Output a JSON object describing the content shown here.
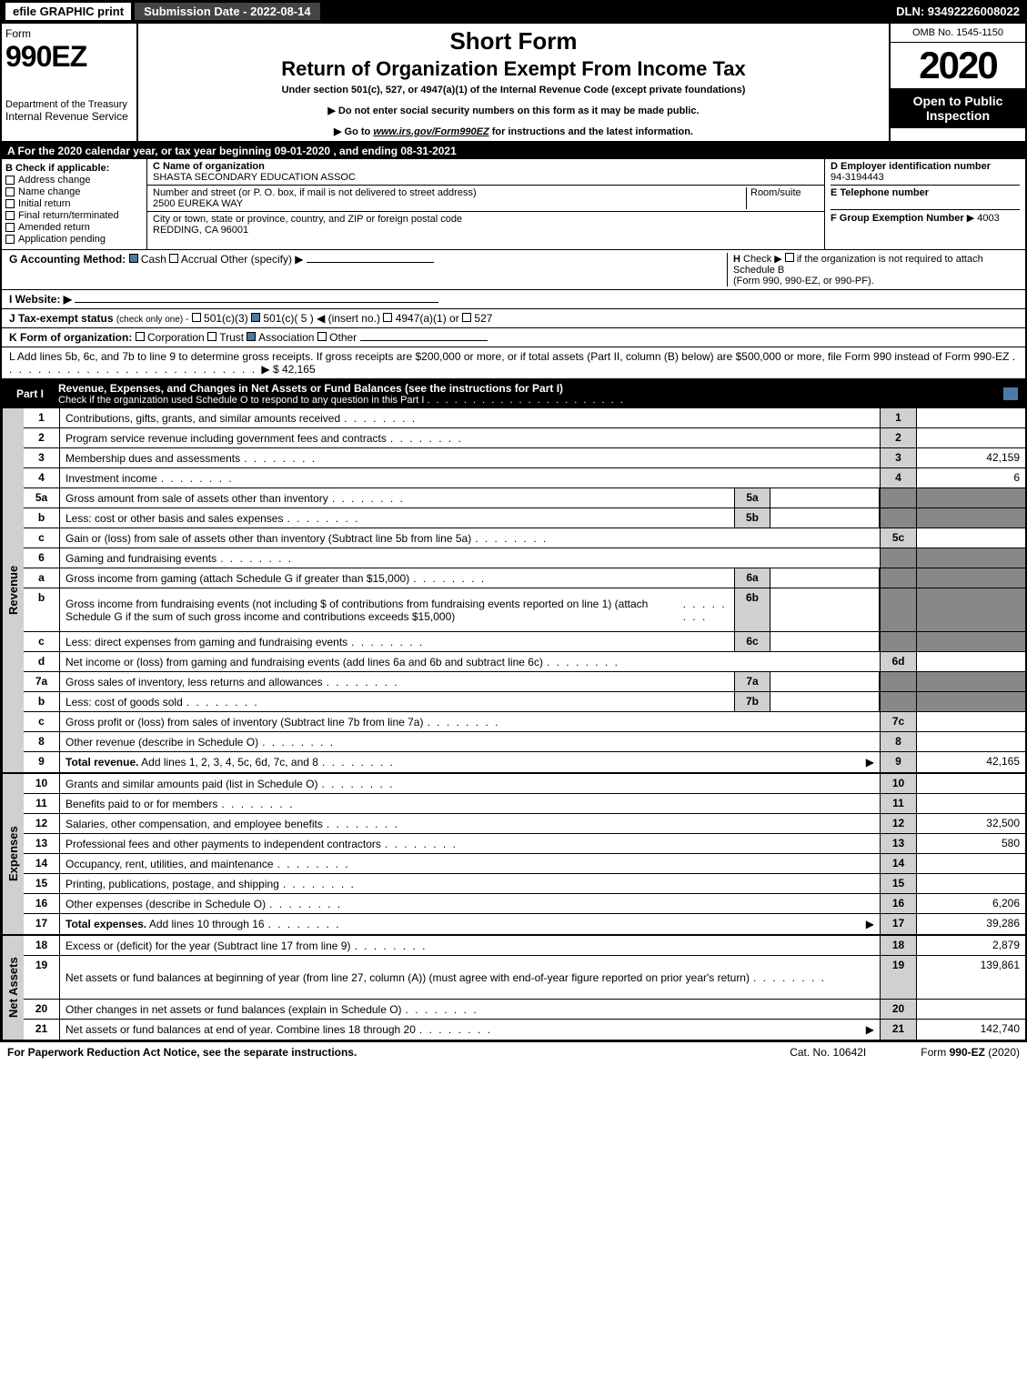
{
  "topbar": {
    "efile": "efile GRAPHIC print",
    "submission": "Submission Date - 2022-08-14",
    "dln": "DLN: 93492226008022"
  },
  "header": {
    "form_label": "Form",
    "form_number": "990EZ",
    "dept1": "Department of the Treasury",
    "dept2": "Internal Revenue Service",
    "short_form": "Short Form",
    "return_title": "Return of Organization Exempt From Income Tax",
    "under_section": "Under section 501(c), 527, or 4947(a)(1) of the Internal Revenue Code (except private foundations)",
    "instr1": "▶ Do not enter social security numbers on this form as it may be made public.",
    "instr2_pre": "▶ Go to ",
    "instr2_link": "www.irs.gov/Form990EZ",
    "instr2_post": " for instructions and the latest information.",
    "omb": "OMB No. 1545-1150",
    "year": "2020",
    "open": "Open to Public Inspection"
  },
  "line_a": "A For the 2020 calendar year, or tax year beginning 09-01-2020 , and ending 08-31-2021",
  "section_b": {
    "title": "B Check if applicable:",
    "items": [
      "Address change",
      "Name change",
      "Initial return",
      "Final return/terminated",
      "Amended return",
      "Application pending"
    ]
  },
  "section_c": {
    "name_label": "C Name of organization",
    "name": "SHASTA SECONDARY EDUCATION ASSOC",
    "street_label": "Number and street (or P. O. box, if mail is not delivered to street address)",
    "room_label": "Room/suite",
    "street": "2500 EUREKA WAY",
    "city_label": "City or town, state or province, country, and ZIP or foreign postal code",
    "city": "REDDING, CA  96001"
  },
  "section_d": {
    "ein_label": "D Employer identification number",
    "ein": "94-3194443",
    "phone_label": "E Telephone number",
    "group_label": "F Group Exemption Number",
    "group_arrow": "▶ 4003"
  },
  "line_g": {
    "label": "G Accounting Method:",
    "cash": "Cash",
    "accrual": "Accrual",
    "other": "Other (specify) ▶"
  },
  "line_h": {
    "label": "H",
    "text1": "Check ▶",
    "text2": "if the organization is not required to attach Schedule B",
    "text3": "(Form 990, 990-EZ, or 990-PF)."
  },
  "line_i": {
    "label": "I Website: ▶"
  },
  "line_j": {
    "label": "J Tax-exempt status",
    "sub": "(check only one) -",
    "opt1": "501(c)(3)",
    "opt2": "501(c)( 5 ) ◀ (insert no.)",
    "opt3": "4947(a)(1) or",
    "opt4": "527"
  },
  "line_k": {
    "label": "K Form of organization:",
    "opts": [
      "Corporation",
      "Trust",
      "Association",
      "Other"
    ]
  },
  "line_l": {
    "text": "L Add lines 5b, 6c, and 7b to line 9 to determine gross receipts. If gross receipts are $200,000 or more, or if total assets (Part II, column (B) below) are $500,000 or more, file Form 990 instead of Form 990-EZ",
    "amount": "▶ $ 42,165"
  },
  "part1": {
    "label": "Part I",
    "title": "Revenue, Expenses, and Changes in Net Assets or Fund Balances (see the instructions for Part I)",
    "subtitle": "Check if the organization used Schedule O to respond to any question in this Part I"
  },
  "sections": {
    "revenue": "Revenue",
    "expenses": "Expenses",
    "netassets": "Net Assets"
  },
  "rows": [
    {
      "n": "1",
      "d": "Contributions, gifts, grants, and similar amounts received",
      "rn": "1",
      "v": ""
    },
    {
      "n": "2",
      "d": "Program service revenue including government fees and contracts",
      "rn": "2",
      "v": ""
    },
    {
      "n": "3",
      "d": "Membership dues and assessments",
      "rn": "3",
      "v": "42,159"
    },
    {
      "n": "4",
      "d": "Investment income",
      "rn": "4",
      "v": "6"
    },
    {
      "n": "5a",
      "d": "Gross amount from sale of assets other than inventory",
      "sn": "5a",
      "grey": true
    },
    {
      "n": "b",
      "d": "Less: cost or other basis and sales expenses",
      "sn": "5b",
      "grey": true
    },
    {
      "n": "c",
      "d": "Gain or (loss) from sale of assets other than inventory (Subtract line 5b from line 5a)",
      "rn": "5c",
      "v": ""
    },
    {
      "n": "6",
      "d": "Gaming and fundraising events",
      "grey": true,
      "noval": true
    },
    {
      "n": "a",
      "d": "Gross income from gaming (attach Schedule G if greater than $15,000)",
      "sn": "6a",
      "grey": true
    },
    {
      "n": "b",
      "d": "Gross income from fundraising events (not including $                    of contributions from fundraising events reported on line 1) (attach Schedule G if the sum of such gross income and contributions exceeds $15,000)",
      "sn": "6b",
      "grey": true,
      "tall": true
    },
    {
      "n": "c",
      "d": "Less: direct expenses from gaming and fundraising events",
      "sn": "6c",
      "grey": true
    },
    {
      "n": "d",
      "d": "Net income or (loss) from gaming and fundraising events (add lines 6a and 6b and subtract line 6c)",
      "rn": "6d",
      "v": ""
    },
    {
      "n": "7a",
      "d": "Gross sales of inventory, less returns and allowances",
      "sn": "7a",
      "grey": true
    },
    {
      "n": "b",
      "d": "Less: cost of goods sold",
      "sn": "7b",
      "grey": true
    },
    {
      "n": "c",
      "d": "Gross profit or (loss) from sales of inventory (Subtract line 7b from line 7a)",
      "rn": "7c",
      "v": ""
    },
    {
      "n": "8",
      "d": "Other revenue (describe in Schedule O)",
      "rn": "8",
      "v": ""
    },
    {
      "n": "9",
      "d": "Total revenue. Add lines 1, 2, 3, 4, 5c, 6d, 7c, and 8",
      "rn": "9",
      "v": "42,165",
      "bold": true,
      "arrow": true
    }
  ],
  "exp_rows": [
    {
      "n": "10",
      "d": "Grants and similar amounts paid (list in Schedule O)",
      "rn": "10",
      "v": ""
    },
    {
      "n": "11",
      "d": "Benefits paid to or for members",
      "rn": "11",
      "v": ""
    },
    {
      "n": "12",
      "d": "Salaries, other compensation, and employee benefits",
      "rn": "12",
      "v": "32,500"
    },
    {
      "n": "13",
      "d": "Professional fees and other payments to independent contractors",
      "rn": "13",
      "v": "580"
    },
    {
      "n": "14",
      "d": "Occupancy, rent, utilities, and maintenance",
      "rn": "14",
      "v": ""
    },
    {
      "n": "15",
      "d": "Printing, publications, postage, and shipping",
      "rn": "15",
      "v": ""
    },
    {
      "n": "16",
      "d": "Other expenses (describe in Schedule O)",
      "rn": "16",
      "v": "6,206"
    },
    {
      "n": "17",
      "d": "Total expenses. Add lines 10 through 16",
      "rn": "17",
      "v": "39,286",
      "bold": true,
      "arrow": true
    }
  ],
  "net_rows": [
    {
      "n": "18",
      "d": "Excess or (deficit) for the year (Subtract line 17 from line 9)",
      "rn": "18",
      "v": "2,879"
    },
    {
      "n": "19",
      "d": "Net assets or fund balances at beginning of year (from line 27, column (A)) (must agree with end-of-year figure reported on prior year's return)",
      "rn": "19",
      "v": "139,861",
      "tall": true
    },
    {
      "n": "20",
      "d": "Other changes in net assets or fund balances (explain in Schedule O)",
      "rn": "20",
      "v": ""
    },
    {
      "n": "21",
      "d": "Net assets or fund balances at end of year. Combine lines 18 through 20",
      "rn": "21",
      "v": "142,740",
      "arrow": true
    }
  ],
  "footer": {
    "left": "For Paperwork Reduction Act Notice, see the separate instructions.",
    "mid": "Cat. No. 10642I",
    "right_pre": "Form ",
    "right_bold": "990-EZ",
    "right_post": " (2020)"
  }
}
